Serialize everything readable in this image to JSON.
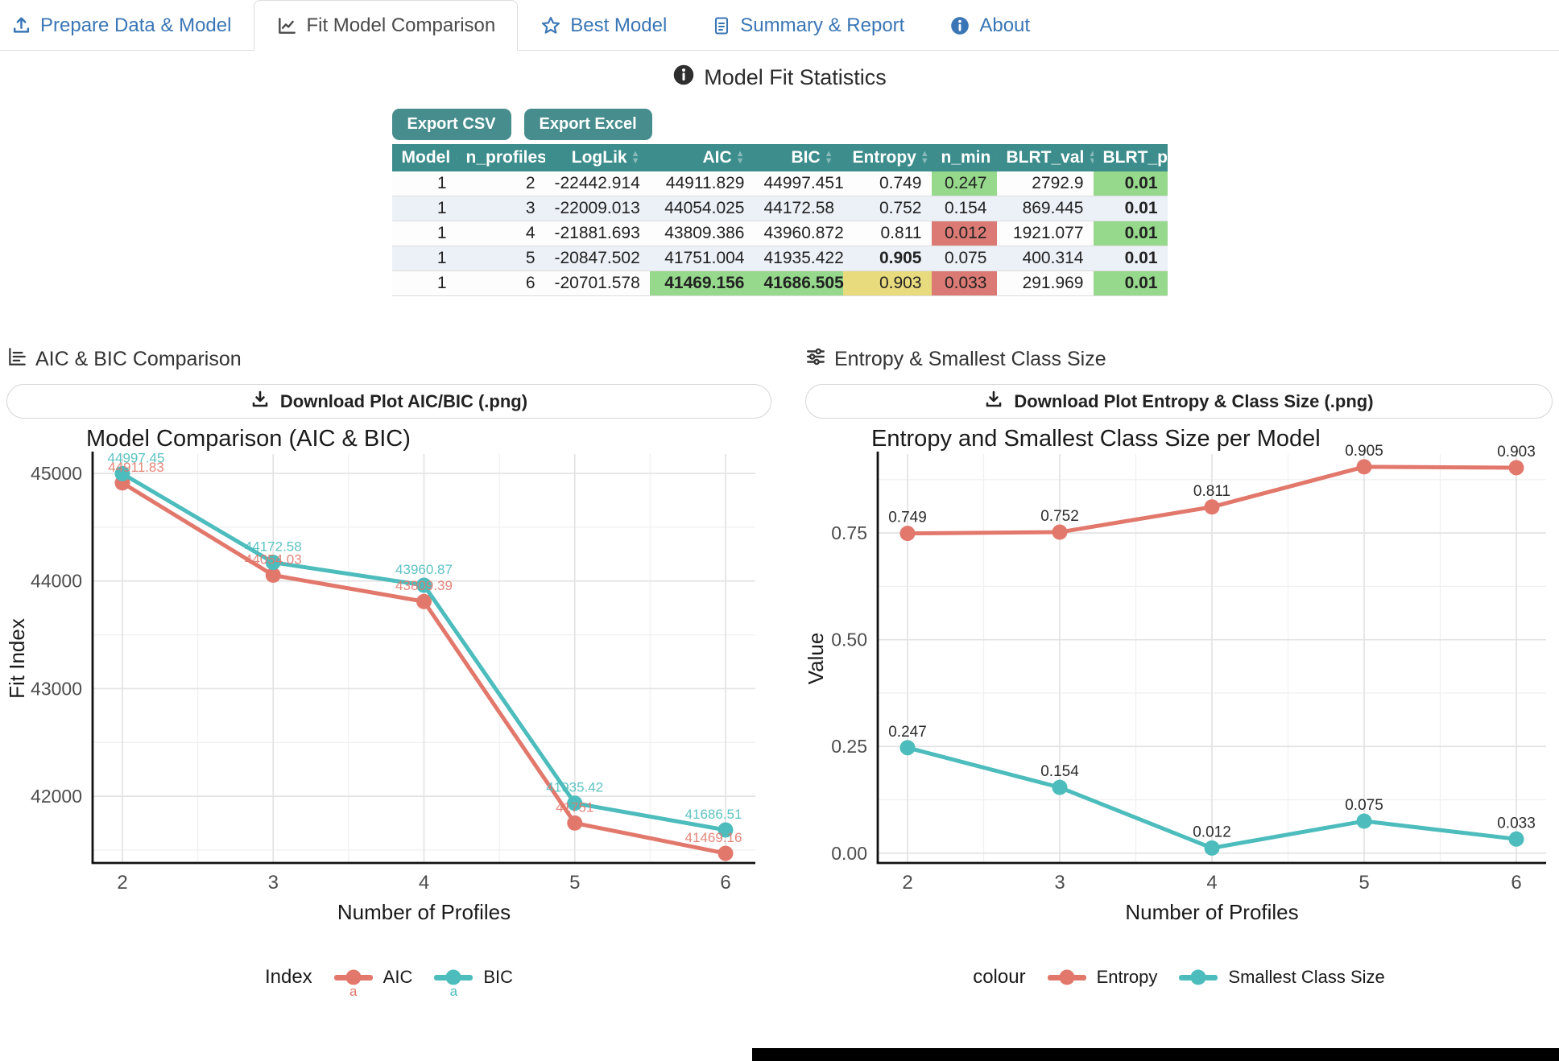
{
  "tabs": [
    {
      "label": "Prepare Data & Model",
      "icon": "upload-icon",
      "active": false
    },
    {
      "label": "Fit Model Comparison",
      "icon": "chart-line-icon",
      "active": true
    },
    {
      "label": "Best Model",
      "icon": "star-icon",
      "active": false
    },
    {
      "label": "Summary & Report",
      "icon": "file-lines-icon",
      "active": false
    },
    {
      "label": "About",
      "icon": "info-circle-icon",
      "active": false
    }
  ],
  "section_title": "Model Fit Statistics",
  "export": {
    "csv_label": "Export CSV",
    "excel_label": "Export Excel"
  },
  "table": {
    "columns": [
      "Model",
      "n_profiles",
      "LogLik",
      "AIC",
      "BIC",
      "Entropy",
      "n_min",
      "BLRT_val",
      "BLRT_p"
    ],
    "rows": [
      {
        "cells": [
          "1",
          "2",
          "-22442.914",
          "44911.829",
          "44997.451",
          "0.749",
          "0.247",
          "2792.9",
          "0.01"
        ],
        "classes": [
          "",
          "",
          "",
          "",
          "",
          "",
          "hl-green",
          "",
          "hl-green bold"
        ]
      },
      {
        "cells": [
          "1",
          "3",
          "-22009.013",
          "44054.025",
          "44172.58",
          "0.752",
          "0.154",
          "869.445",
          "0.01"
        ],
        "classes": [
          "",
          "",
          "",
          "",
          "",
          "",
          "hl-green",
          "",
          "hl-green bold"
        ]
      },
      {
        "cells": [
          "1",
          "4",
          "-21881.693",
          "43809.386",
          "43960.872",
          "0.811",
          "0.012",
          "1921.077",
          "0.01"
        ],
        "classes": [
          "",
          "",
          "",
          "",
          "",
          "",
          "hl-red",
          "",
          "hl-green bold"
        ]
      },
      {
        "cells": [
          "1",
          "5",
          "-20847.502",
          "41751.004",
          "41935.422",
          "0.905",
          "0.075",
          "400.314",
          "0.01"
        ],
        "classes": [
          "",
          "",
          "",
          "hl-yellow",
          "hl-yellow",
          "hl-green bold",
          "hl-green",
          "",
          "hl-green bold"
        ]
      },
      {
        "cells": [
          "1",
          "6",
          "-20701.578",
          "41469.156",
          "41686.505",
          "0.903",
          "0.033",
          "291.969",
          "0.01"
        ],
        "classes": [
          "",
          "",
          "",
          "hl-green bold",
          "hl-green bold",
          "hl-yellow",
          "hl-red",
          "",
          "hl-green bold"
        ]
      }
    ]
  },
  "left_panel": {
    "heading": "AIC & BIC Comparison",
    "download_label": "Download Plot AIC/BIC (.png)",
    "legend": {
      "title": "Index",
      "items": [
        {
          "label": "AIC",
          "color": "#e2786c",
          "glyph": "a"
        },
        {
          "label": "BIC",
          "color": "#4dbcbd",
          "glyph": "a"
        }
      ]
    }
  },
  "right_panel": {
    "heading": "Entropy & Smallest Class Size",
    "download_label": "Download Plot Entropy & Class Size (.png)",
    "legend": {
      "title": "colour",
      "items": [
        {
          "label": "Entropy",
          "color": "#e2786c"
        },
        {
          "label": "Smallest Class Size",
          "color": "#4dbcbd"
        }
      ]
    }
  },
  "colors": {
    "accent_teal": "#3d8d8d",
    "tab_blue": "#3a76b5",
    "highlight_green": "#96d88c",
    "highlight_red": "#db7a74",
    "highlight_yellow": "#e8db7e",
    "series_red": "#e2786c",
    "series_teal": "#4dbcbd"
  },
  "chart_data": [
    {
      "type": "line",
      "title": "Model Comparison (AIC & BIC)",
      "xlabel": "Number of Profiles",
      "ylabel": "Fit Index",
      "x": [
        2,
        3,
        4,
        5,
        6
      ],
      "series": [
        {
          "name": "AIC",
          "color": "#e2786c",
          "values": [
            44911.829,
            44054.025,
            43809.386,
            41751.004,
            41469.156
          ],
          "point_labels": [
            "44911.83",
            "44054.03",
            "43809.39",
            "41751",
            "41469.16"
          ]
        },
        {
          "name": "BIC",
          "color": "#4dbcbd",
          "values": [
            44997.451,
            44172.58,
            43960.872,
            41935.422,
            41686.505
          ],
          "point_labels": [
            "44997.45",
            "44172.58",
            "43960.87",
            "41935.42",
            "41686.51"
          ]
        }
      ],
      "ylim": [
        41380,
        45180
      ],
      "yticks": [
        42000,
        43000,
        44000,
        45000
      ],
      "ytick_labels": [
        "42000",
        "43000",
        "44000",
        "45000"
      ],
      "yticks_minor": [
        41500,
        42500,
        43500,
        44500
      ],
      "grid": true,
      "legend_position": "bottom",
      "legend_title": "Index",
      "point_label_style": "series-color"
    },
    {
      "type": "line",
      "title": "Entropy and Smallest Class Size per Model",
      "xlabel": "Number of Profiles",
      "ylabel": "Value",
      "x": [
        2,
        3,
        4,
        5,
        6
      ],
      "series": [
        {
          "name": "Entropy",
          "color": "#e2786c",
          "values": [
            0.749,
            0.752,
            0.811,
            0.905,
            0.903
          ],
          "point_labels": [
            "0.749",
            "0.752",
            "0.811",
            "0.905",
            "0.903"
          ]
        },
        {
          "name": "Smallest Class Size",
          "color": "#4dbcbd",
          "values": [
            0.247,
            0.154,
            0.012,
            0.075,
            0.033
          ],
          "point_labels": [
            "0.247",
            "0.154",
            "0.012",
            "0.075",
            "0.033"
          ]
        }
      ],
      "ylim": [
        -0.023,
        0.935
      ],
      "yticks": [
        0,
        0.25,
        0.5,
        0.75
      ],
      "ytick_labels": [
        "0.00",
        "0.25",
        "0.50",
        "0.75"
      ],
      "yticks_minor": [
        0.125,
        0.375,
        0.625,
        0.875
      ],
      "grid": true,
      "legend_position": "bottom",
      "legend_title": "colour",
      "point_label_style": "dark"
    }
  ]
}
